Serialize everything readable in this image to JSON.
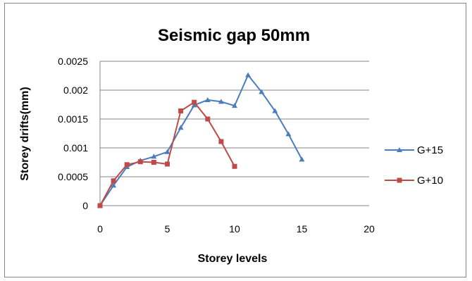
{
  "chart_data": {
    "type": "line",
    "title": "Seismic gap 50mm",
    "xlabel": "Storey levels",
    "ylabel": "Storey drifts(mm)",
    "xlim": [
      0,
      20
    ],
    "ylim": [
      0,
      0.0025
    ],
    "x_ticks": [
      "0",
      "5",
      "10",
      "15",
      "20"
    ],
    "y_ticks": [
      "0",
      "0.0005",
      "0.001",
      "0.0015",
      "0.002",
      "0.0025"
    ],
    "grid": "horizontal",
    "legend_position": "right",
    "series": [
      {
        "name": "G+15",
        "color": "#4A7EBB",
        "marker": "triangle",
        "x": [
          0,
          1,
          2,
          3,
          4,
          5,
          6,
          7,
          8,
          9,
          10,
          11,
          12,
          13,
          14,
          15
        ],
        "y": [
          0,
          0.00035,
          0.00067,
          0.00078,
          0.00085,
          0.00093,
          0.00135,
          0.00174,
          0.00183,
          0.0018,
          0.00173,
          0.00226,
          0.00197,
          0.00164,
          0.00124,
          0.0008
        ]
      },
      {
        "name": "G+10",
        "color": "#BE4B48",
        "marker": "square",
        "x": [
          0,
          1,
          2,
          3,
          4,
          5,
          6,
          7,
          8,
          9,
          10
        ],
        "y": [
          0,
          0.00043,
          0.00071,
          0.00076,
          0.00075,
          0.00072,
          0.00164,
          0.00179,
          0.0015,
          0.00111,
          0.00068
        ]
      }
    ]
  }
}
